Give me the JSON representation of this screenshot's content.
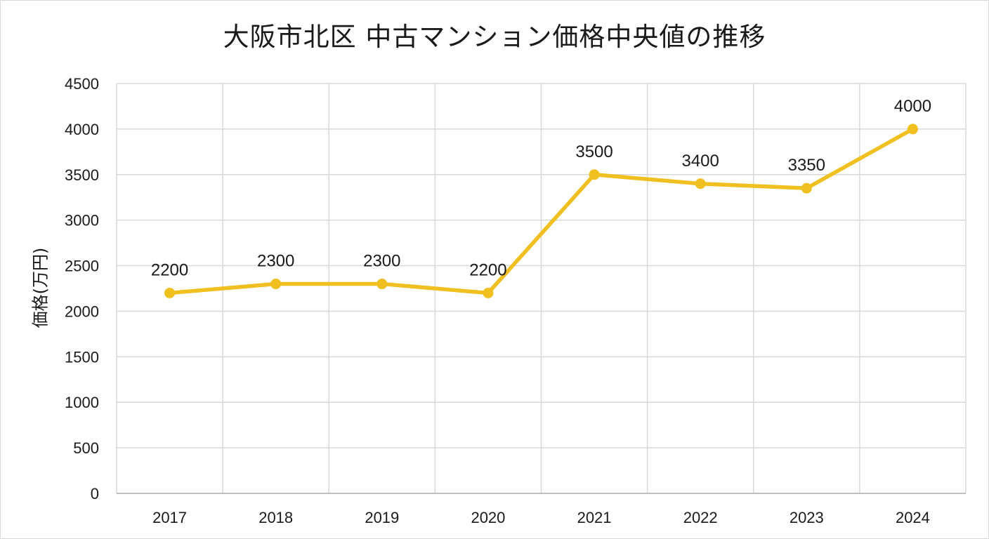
{
  "chart_data": {
    "type": "line",
    "title": "大阪市北区 中古マンション価格中央値の推移",
    "xlabel": "",
    "ylabel": "価格(万円)",
    "categories": [
      "2017",
      "2018",
      "2019",
      "2020",
      "2021",
      "2022",
      "2023",
      "2024"
    ],
    "series": [
      {
        "values": [
          2200,
          2300,
          2300,
          2200,
          3500,
          3400,
          3350,
          4000
        ],
        "color": "#f0c020"
      }
    ],
    "data_labels": [
      "2200",
      "2300",
      "2300",
      "2200",
      "3500",
      "3400",
      "3350",
      "4000"
    ],
    "ylim": [
      0,
      4500
    ],
    "yticks": [
      0,
      500,
      1000,
      1500,
      2000,
      2500,
      3000,
      3500,
      4000,
      4500
    ],
    "grid": true,
    "legend": "none"
  }
}
